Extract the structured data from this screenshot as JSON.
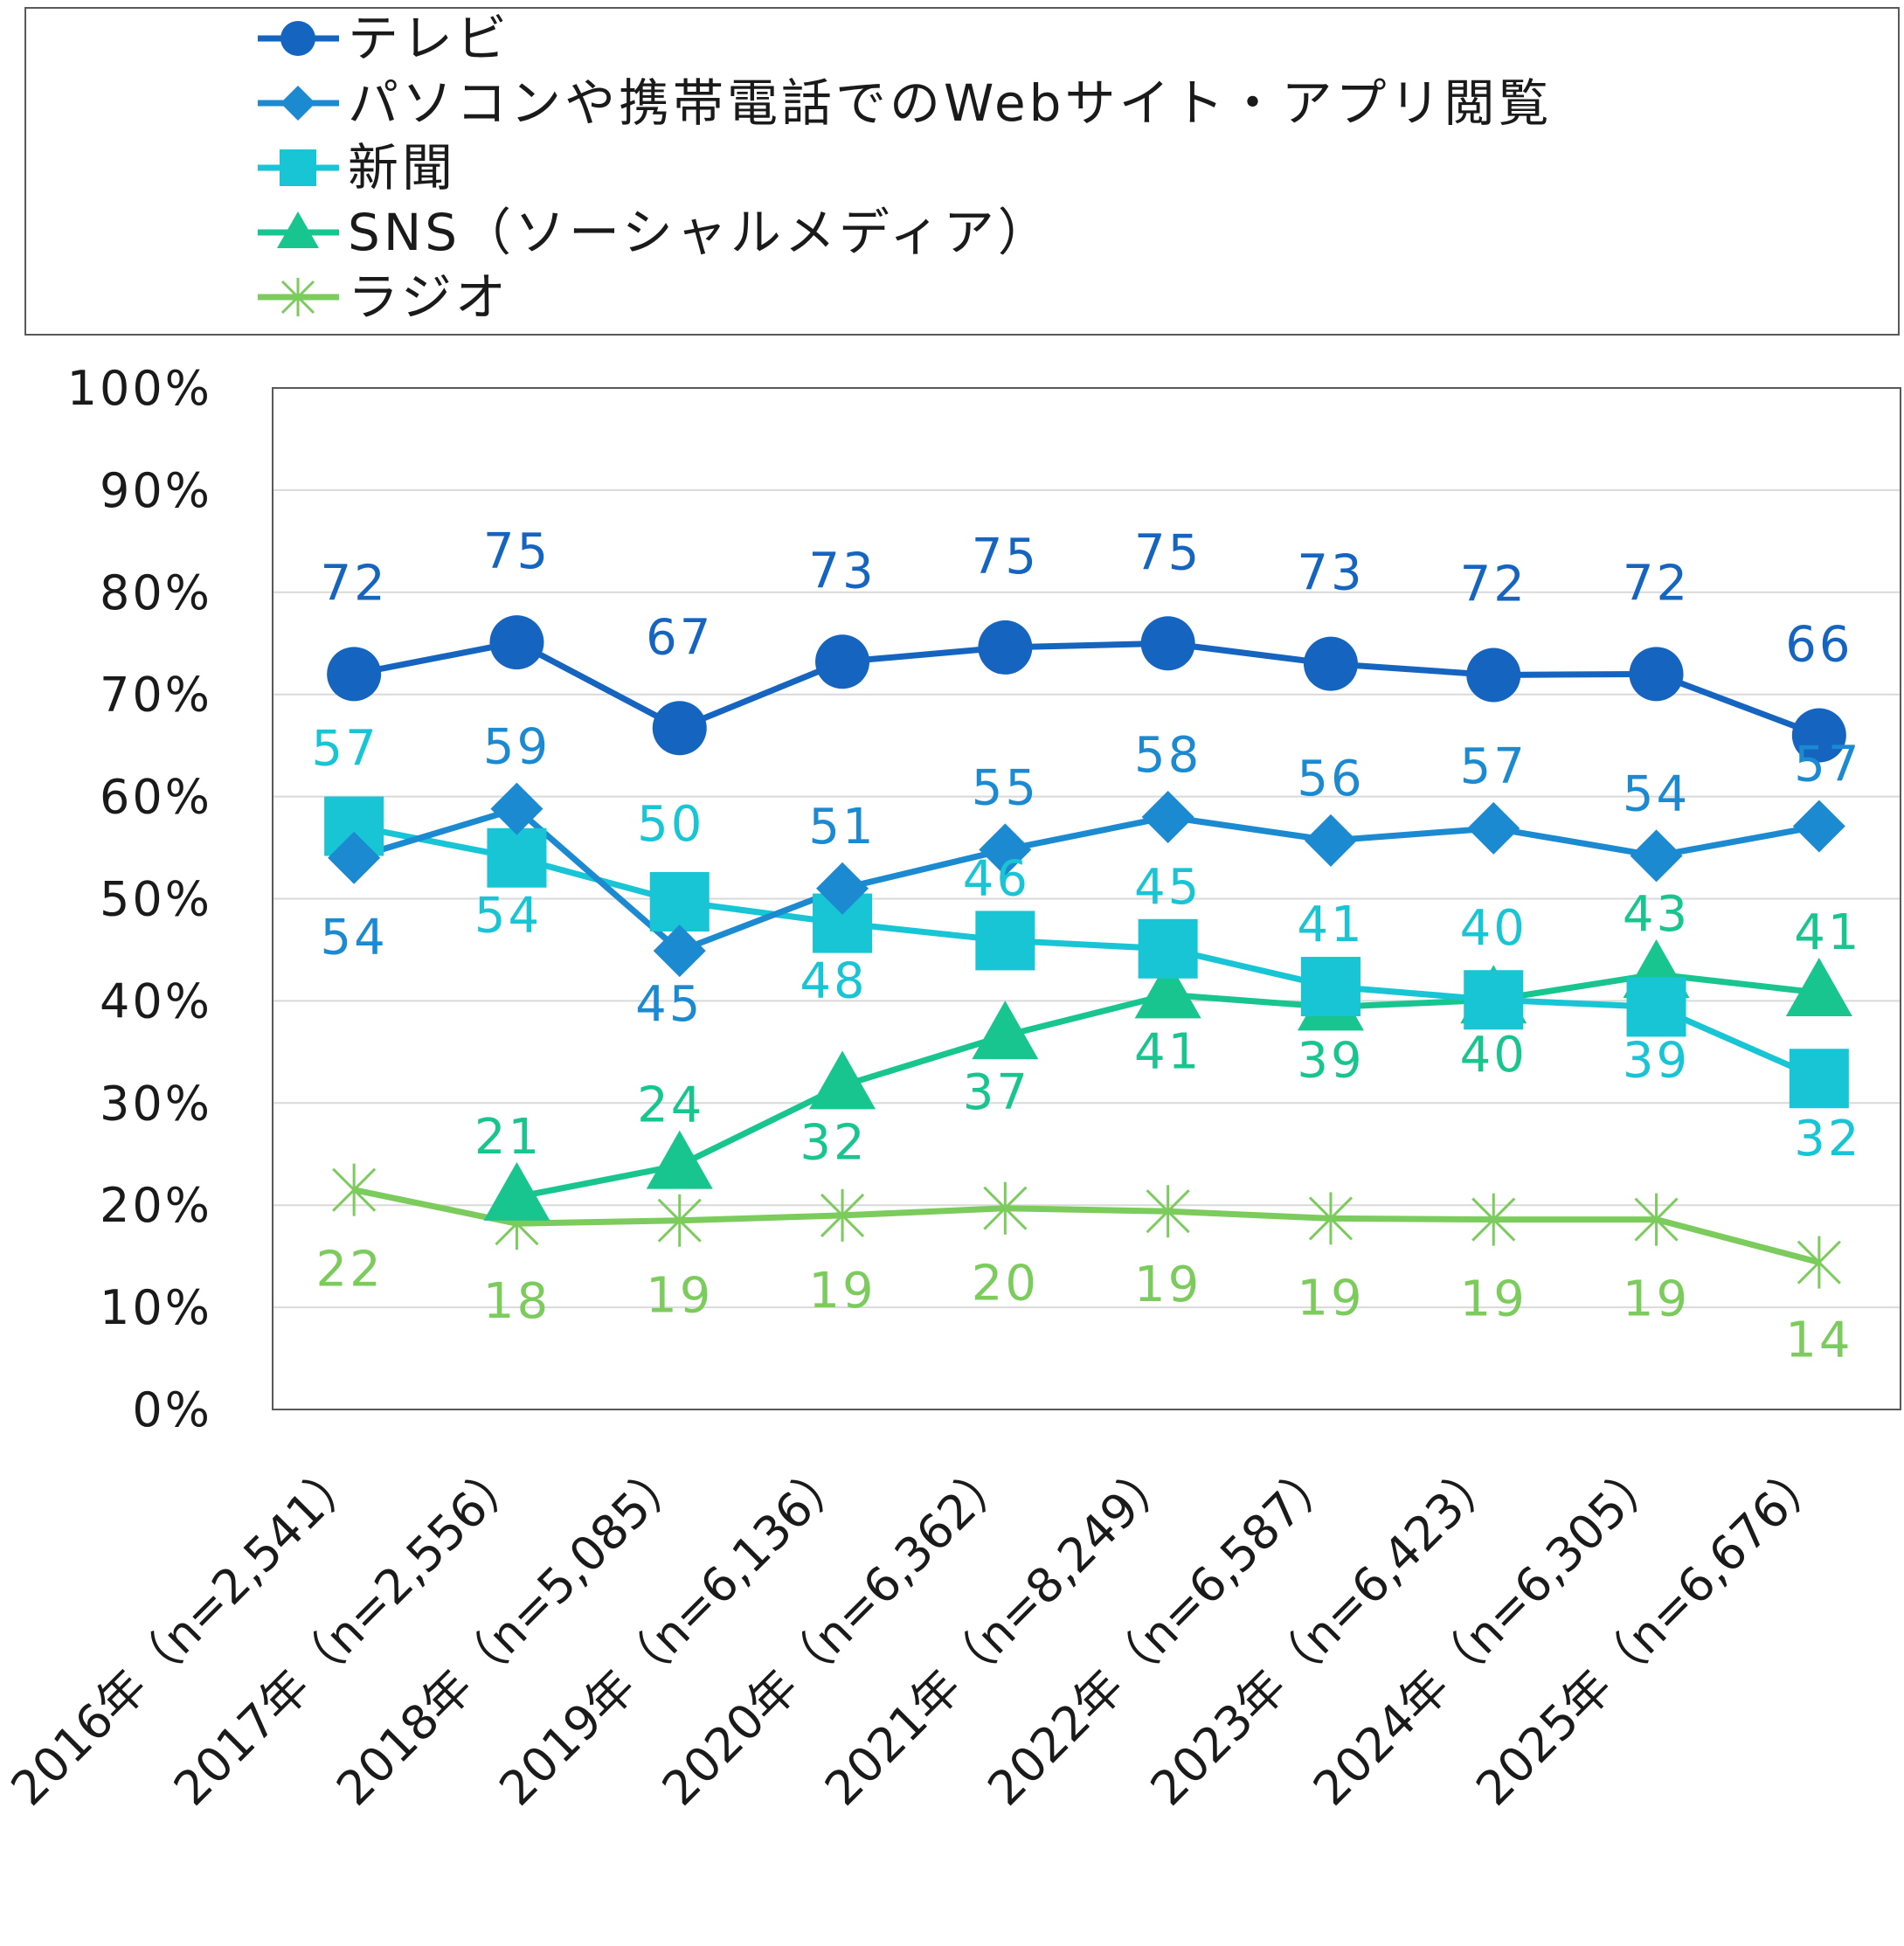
{
  "chart_data": {
    "type": "line",
    "categories": [
      "2016年（n=2,541）",
      "2017年（n=2,556）",
      "2018年（n=5,085）",
      "2019年（n=6,136）",
      "2020年（n=6,362）",
      "2021年（n=8,249）",
      "2022年（n=6,587）",
      "2023年（n=6,423）",
      "2024年（n=6,305）",
      "2025年（n=6,676）"
    ],
    "ylim": [
      0,
      100
    ],
    "yticks": [
      "0%",
      "10%",
      "20%",
      "30%",
      "40%",
      "50%",
      "60%",
      "70%",
      "80%",
      "90%",
      "100%"
    ],
    "grid": true,
    "legend_position": "top",
    "series": [
      {
        "name": "テレビ",
        "marker": "circle",
        "color": "#1565C0",
        "values": [
          72.0,
          75.1,
          66.7,
          73.2,
          74.6,
          75.0,
          73.0,
          71.9,
          72.0,
          66.0
        ],
        "labels": [
          "72",
          "75",
          "67",
          "73",
          "75",
          "75",
          "73",
          "72",
          "72",
          "66"
        ]
      },
      {
        "name": "パソコンや携帯電話でのWebサイト・アプリ閲覧",
        "marker": "diamond",
        "color": "#1C8AD0",
        "values": [
          54.0,
          58.8,
          44.9,
          51.0,
          54.8,
          58.0,
          55.7,
          56.9,
          54.2,
          57.1
        ],
        "labels": [
          "54",
          "59",
          "45",
          "51",
          "55",
          "58",
          "56",
          "57",
          "54",
          "57"
        ]
      },
      {
        "name": "新聞",
        "marker": "square",
        "color": "#17C5D5",
        "values": [
          57.1,
          54.0,
          49.7,
          47.6,
          45.9,
          45.1,
          41.4,
          40.1,
          39.4,
          32.4
        ],
        "labels": [
          "57",
          "54",
          "50",
          "48",
          "46",
          "45",
          "41",
          "40",
          "39",
          "32"
        ]
      },
      {
        "name": "SNS（ソーシャルメディア）",
        "marker": "triangle",
        "color": "#19C58F",
        "values": [
          null,
          20.8,
          23.9,
          31.7,
          36.6,
          40.6,
          39.4,
          40.1,
          42.6,
          40.8
        ],
        "labels": [
          "",
          "21",
          "24",
          "32",
          "37",
          "41",
          "39",
          "40",
          "43",
          "41"
        ]
      },
      {
        "name": "ラジオ",
        "marker": "asterisk",
        "color": "#7CCB5D",
        "values": [
          21.5,
          18.2,
          18.5,
          19.0,
          19.7,
          19.4,
          18.7,
          18.6,
          18.6,
          14.4
        ],
        "labels": [
          "22",
          "18",
          "19",
          "19",
          "20",
          "19",
          "19",
          "19",
          "19",
          "14"
        ]
      }
    ]
  }
}
